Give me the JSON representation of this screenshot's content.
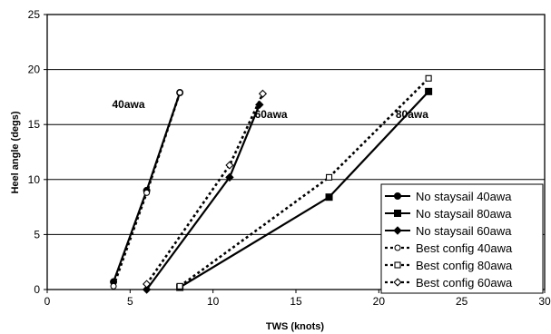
{
  "chart_data": {
    "type": "line",
    "title": "",
    "xlabel": "TWS (knots)",
    "ylabel": "Heel angle (degs)",
    "xlim": [
      0,
      30
    ],
    "ylim": [
      0,
      25
    ],
    "xticks": [
      "0",
      "5",
      "10",
      "15",
      "20",
      "25",
      "30"
    ],
    "yticks": [
      "0",
      "5",
      "10",
      "15",
      "20",
      "25"
    ],
    "grid": "horizontal",
    "legend_position": "bottom-right",
    "series": [
      {
        "name": "No staysail 40awa",
        "style": "solid",
        "marker": "circle",
        "x": [
          4,
          6,
          8
        ],
        "y": [
          0.7,
          9.0,
          17.9
        ]
      },
      {
        "name": "No staysail 80awa",
        "style": "solid",
        "marker": "square",
        "x": [
          8,
          17,
          23
        ],
        "y": [
          0.2,
          8.4,
          18.0
        ]
      },
      {
        "name": "No staysail 60awa",
        "style": "solid",
        "marker": "diamond",
        "x": [
          6,
          11,
          12.8
        ],
        "y": [
          0.0,
          10.2,
          16.8
        ]
      },
      {
        "name": "Best config 40awa",
        "style": "dotted",
        "marker": "circle-open",
        "x": [
          4,
          6,
          8
        ],
        "y": [
          0.3,
          8.8,
          17.9
        ]
      },
      {
        "name": "Best config 80awa",
        "style": "dotted",
        "marker": "square-open",
        "x": [
          8,
          17,
          23
        ],
        "y": [
          0.3,
          10.2,
          19.2
        ]
      },
      {
        "name": "Best config 60awa",
        "style": "dotted",
        "marker": "diamond-open",
        "x": [
          6,
          11,
          13
        ],
        "y": [
          0.5,
          11.3,
          17.8
        ]
      }
    ],
    "annotations": [
      {
        "text": "40awa",
        "x": 4.9,
        "y": 16.5
      },
      {
        "text": "60awa",
        "x": 13.5,
        "y": 15.6
      },
      {
        "text": "80awa",
        "x": 22.0,
        "y": 15.6
      }
    ]
  }
}
